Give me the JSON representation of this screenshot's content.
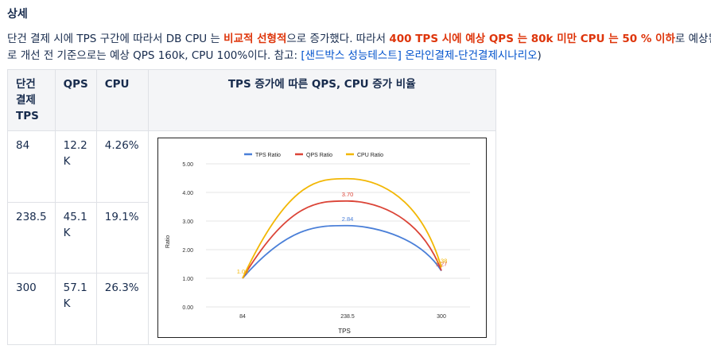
{
  "heading": "상세",
  "paragraph": {
    "p1": "단건 결제 시에 TPS 구간에 따라서 DB CPU 는 ",
    "p1_red": "비교적 선형적",
    "p2": "으로 증가했다. 따라서 ",
    "p2_red": "400 TPS 시에  예상 QPS 는  80k 미만  CPU 는 50 % 이하",
    "p3": "로 예상된다. ",
    "line2_a": "로 개선 전 기준으로는 예상 QPS 160k, CPU 100%이다. 참고: ",
    "line2_link": "[샌드박스 성능테스트] 온라인결제-단건결제시나리오",
    "line2_b": ")"
  },
  "table": {
    "headers": [
      "단건 결제 TPS",
      "QPS",
      "CPU",
      "TPS 증가에 따른 QPS, CPU 증가 비율"
    ],
    "rows": [
      {
        "tps": "84",
        "qps": "12.2 K",
        "cpu": "4.26%"
      },
      {
        "tps": "238.5",
        "qps": "45.1 K",
        "cpu": "19.1%"
      },
      {
        "tps": "300",
        "qps": "57.1 K",
        "cpu": "26.3%"
      }
    ]
  },
  "chart_data": {
    "type": "line",
    "categories": [
      "84",
      "238.5",
      "300"
    ],
    "series": [
      {
        "name": "TPS Ratio",
        "values": [
          1.0,
          2.84,
          1.26
        ],
        "color": "#4a7fd8",
        "labels": [
          "",
          "2.84",
          ""
        ]
      },
      {
        "name": "QPS Ratio",
        "values": [
          1.0,
          3.7,
          1.27
        ],
        "color": "#db4437",
        "labels": [
          "",
          "3.70",
          "1.27"
        ]
      },
      {
        "name": "CPU Ratio",
        "values": [
          1.0,
          4.48,
          1.38
        ],
        "color": "#f2b705",
        "labels": [
          "1.00",
          "",
          "1.38"
        ]
      }
    ],
    "xlabel": "TPS",
    "ylabel": "Ratio",
    "ylim": [
      0,
      5
    ],
    "yticks": [
      "0.00",
      "1.00",
      "2.00",
      "3.00",
      "4.00",
      "5.00"
    ],
    "legend": "top"
  }
}
